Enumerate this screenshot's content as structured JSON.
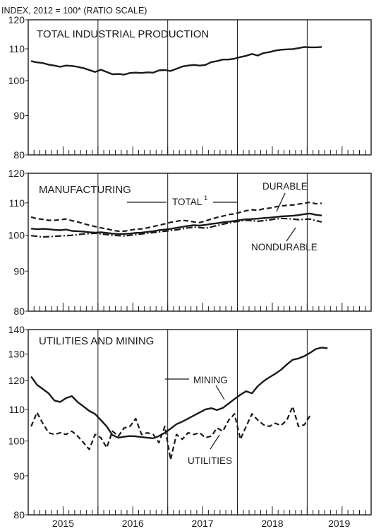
{
  "header": {
    "text": "INDEX, 2012 = 100* (RATIO SCALE)"
  },
  "year_labels": [
    "2015",
    "2016",
    "2017",
    "2018",
    "2019"
  ],
  "chart_data": [
    {
      "type": "line",
      "title": "TOTAL INDUSTRIAL PRODUCTION",
      "ylabel": "INDEX, 2012 = 100* (RATIO SCALE)",
      "scale": "log",
      "ylim": [
        80,
        120
      ],
      "y_ticks": [
        80,
        90,
        100,
        110,
        120
      ],
      "x_start": "2015-01",
      "months": 59,
      "series": [
        {
          "style": "solid",
          "values": [
            106.0,
            105.6,
            105.4,
            104.9,
            104.6,
            104.2,
            104.6,
            104.5,
            104.2,
            103.8,
            103.2,
            102.6,
            103.3,
            102.6,
            101.9,
            102.0,
            101.8,
            102.3,
            102.4,
            102.3,
            102.5,
            102.4,
            103.1,
            103.2,
            102.9,
            103.6,
            104.3,
            104.6,
            104.8,
            104.6,
            104.8,
            105.7,
            106.0,
            106.5,
            106.5,
            106.8,
            107.3,
            107.7,
            108.3,
            107.8,
            108.6,
            108.9,
            109.4,
            109.7,
            109.8,
            109.9,
            110.2,
            110.6,
            110.5,
            110.5,
            110.6
          ]
        }
      ]
    },
    {
      "type": "line",
      "title": "MANUFACTURING",
      "scale": "log",
      "ylim": [
        80,
        120
      ],
      "y_ticks": [
        80,
        90,
        100,
        110,
        120
      ],
      "x_start": "2015-01",
      "months": 59,
      "series": [
        {
          "name": "DURABLE",
          "style": "dashed",
          "values": [
            105.5,
            105.0,
            104.8,
            104.5,
            104.5,
            104.7,
            104.9,
            104.4,
            104.0,
            103.5,
            103.0,
            102.6,
            102.2,
            101.9,
            101.5,
            101.2,
            101.2,
            101.5,
            101.8,
            101.9,
            102.2,
            102.6,
            103.0,
            103.4,
            103.9,
            104.2,
            104.5,
            104.3,
            104.0,
            103.8,
            104.3,
            104.9,
            105.4,
            105.8,
            106.3,
            106.5,
            107.0,
            107.5,
            107.8,
            107.6,
            108.1,
            108.3,
            108.7,
            109.0,
            109.2,
            109.3,
            109.6,
            109.9,
            110.2,
            109.7,
            109.9
          ]
        },
        {
          "name": "TOTAL",
          "style": "solid",
          "values": [
            102.0,
            101.8,
            101.9,
            101.8,
            101.6,
            101.5,
            101.7,
            101.3,
            101.2,
            101.1,
            100.9,
            100.8,
            100.9,
            100.7,
            100.5,
            100.4,
            100.4,
            100.5,
            100.7,
            100.8,
            101.0,
            101.2,
            101.5,
            101.7,
            101.9,
            102.2,
            102.5,
            102.8,
            103.0,
            102.9,
            103.1,
            103.4,
            103.6,
            103.9,
            104.1,
            104.3,
            104.6,
            104.8,
            104.9,
            105.0,
            105.2,
            105.3,
            105.5,
            105.7,
            105.8,
            105.9,
            106.1,
            106.4,
            106.6,
            106.2,
            106.0
          ]
        },
        {
          "name": "NONDURABLE",
          "style": "dashdot",
          "values": [
            99.9,
            99.7,
            99.5,
            99.6,
            99.7,
            99.8,
            99.9,
            100.0,
            100.2,
            100.4,
            100.5,
            100.6,
            100.4,
            100.2,
            100.0,
            99.9,
            99.8,
            100.0,
            100.2,
            100.4,
            100.6,
            100.8,
            101.0,
            101.2,
            101.4,
            101.6,
            101.9,
            102.2,
            102.4,
            102.3,
            102.1,
            102.5,
            102.9,
            103.3,
            103.7,
            104.0,
            104.3,
            104.5,
            104.4,
            104.2,
            104.4,
            104.6,
            104.9,
            105.1,
            105.0,
            104.9,
            104.7,
            104.8,
            104.9,
            104.4,
            104.0
          ]
        }
      ]
    },
    {
      "type": "line",
      "title": "UTILITIES AND MINING",
      "scale": "log",
      "ylim": [
        80,
        140
      ],
      "y_ticks": [
        80,
        90,
        100,
        110,
        120,
        130,
        140
      ],
      "x_start": "2015-01",
      "months": 59,
      "series": [
        {
          "name": "MINING",
          "style": "solid",
          "values": [
            121.5,
            118.5,
            117.0,
            115.5,
            113.0,
            112.5,
            113.8,
            114.5,
            112.5,
            111.0,
            109.5,
            108.5,
            106.5,
            104.5,
            101.8,
            101.0,
            101.3,
            101.5,
            101.4,
            101.2,
            101.0,
            100.8,
            101.5,
            102.5,
            103.8,
            105.2,
            106.0,
            107.0,
            108.0,
            109.0,
            110.0,
            110.4,
            109.8,
            110.5,
            112.0,
            113.5,
            115.0,
            116.2,
            115.5,
            118.0,
            119.8,
            121.2,
            122.5,
            124.0,
            126.0,
            127.8,
            128.3,
            129.2,
            130.5,
            132.0,
            132.6,
            132.3
          ]
        },
        {
          "name": "UTILITIES",
          "style": "dashed",
          "values": [
            104.5,
            109.0,
            105.5,
            102.5,
            102.0,
            102.5,
            102.0,
            103.0,
            101.5,
            99.5,
            97.5,
            102.0,
            101.0,
            98.0,
            103.0,
            101.5,
            104.0,
            104.5,
            107.0,
            102.0,
            102.5,
            102.0,
            99.5,
            104.5,
            94.5,
            102.0,
            100.5,
            102.5,
            102.0,
            102.5,
            101.0,
            101.5,
            104.0,
            103.0,
            106.5,
            108.5,
            100.5,
            104.5,
            108.5,
            106.5,
            105.0,
            104.5,
            105.5,
            104.8,
            106.5,
            111.0,
            104.5,
            105.0,
            108.0
          ]
        }
      ]
    }
  ],
  "panel_labels": {
    "total_label": "TOTAL",
    "total_superscript": "1",
    "durable_label": "DURABLE",
    "nondurable_label": "NONDURABLE",
    "mining_label": "MINING",
    "utilities_label": "UTILITIES"
  }
}
